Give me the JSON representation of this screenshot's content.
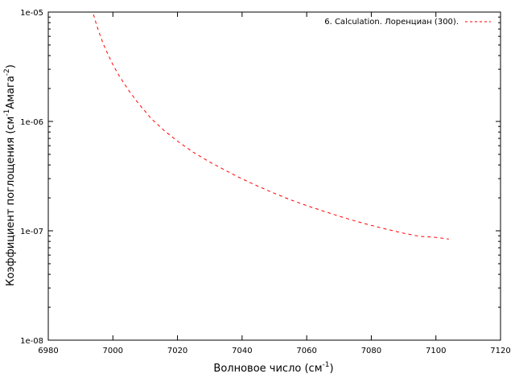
{
  "chart_data": {
    "type": "line",
    "xlabel": {
      "main": "Волновое число (см",
      "sup": "-1",
      "tail": ")"
    },
    "ylabel": {
      "part1": "Коэффициент поглощения (см",
      "sup1": "-1",
      "part2": "Амага",
      "sup2": "-2",
      "part3": ")"
    },
    "xlim": [
      6980,
      7120
    ],
    "ylim": [
      1e-08,
      1e-05
    ],
    "yscale": "log",
    "x_ticks": [
      6980,
      7000,
      7020,
      7040,
      7060,
      7080,
      7100,
      7120
    ],
    "x_tick_labels": [
      "6980",
      "7000",
      "7020",
      "7040",
      "7060",
      "7080",
      "7100",
      "7120"
    ],
    "y_ticks": [
      1e-08,
      1e-07,
      1e-06,
      1e-05
    ],
    "y_tick_labels": [
      "1e-08",
      "1e-07",
      "1e-06",
      "1e-05"
    ],
    "grid": false,
    "legend_position": "top-right",
    "series": [
      {
        "name": "6. Calculation. Лоренциан (300).",
        "color": "#ff0000",
        "line_style": "dashed",
        "x": [
          6994,
          6995,
          6996,
          6997,
          6998,
          7000,
          7002,
          7005,
          7008,
          7012,
          7016,
          7020,
          7025,
          7030,
          7035,
          7040,
          7045,
          7050,
          7055,
          7060,
          7065,
          7070,
          7075,
          7080,
          7085,
          7090,
          7095,
          7100,
          7104
        ],
        "y": [
          9.5e-06,
          7.55e-06,
          6.2e-06,
          5.15e-06,
          4.4e-06,
          3.3e-06,
          2.6e-06,
          1.9e-06,
          1.45e-06,
          1.05e-06,
          8.2e-07,
          6.6e-07,
          5.2e-07,
          4.25e-07,
          3.55e-07,
          2.98e-07,
          2.55e-07,
          2.2e-07,
          1.92e-07,
          1.7e-07,
          1.52e-07,
          1.36e-07,
          1.23e-07,
          1.12e-07,
          1.03e-07,
          9.5e-08,
          8.9e-08,
          8.7e-08,
          8.4e-08
        ]
      }
    ]
  }
}
